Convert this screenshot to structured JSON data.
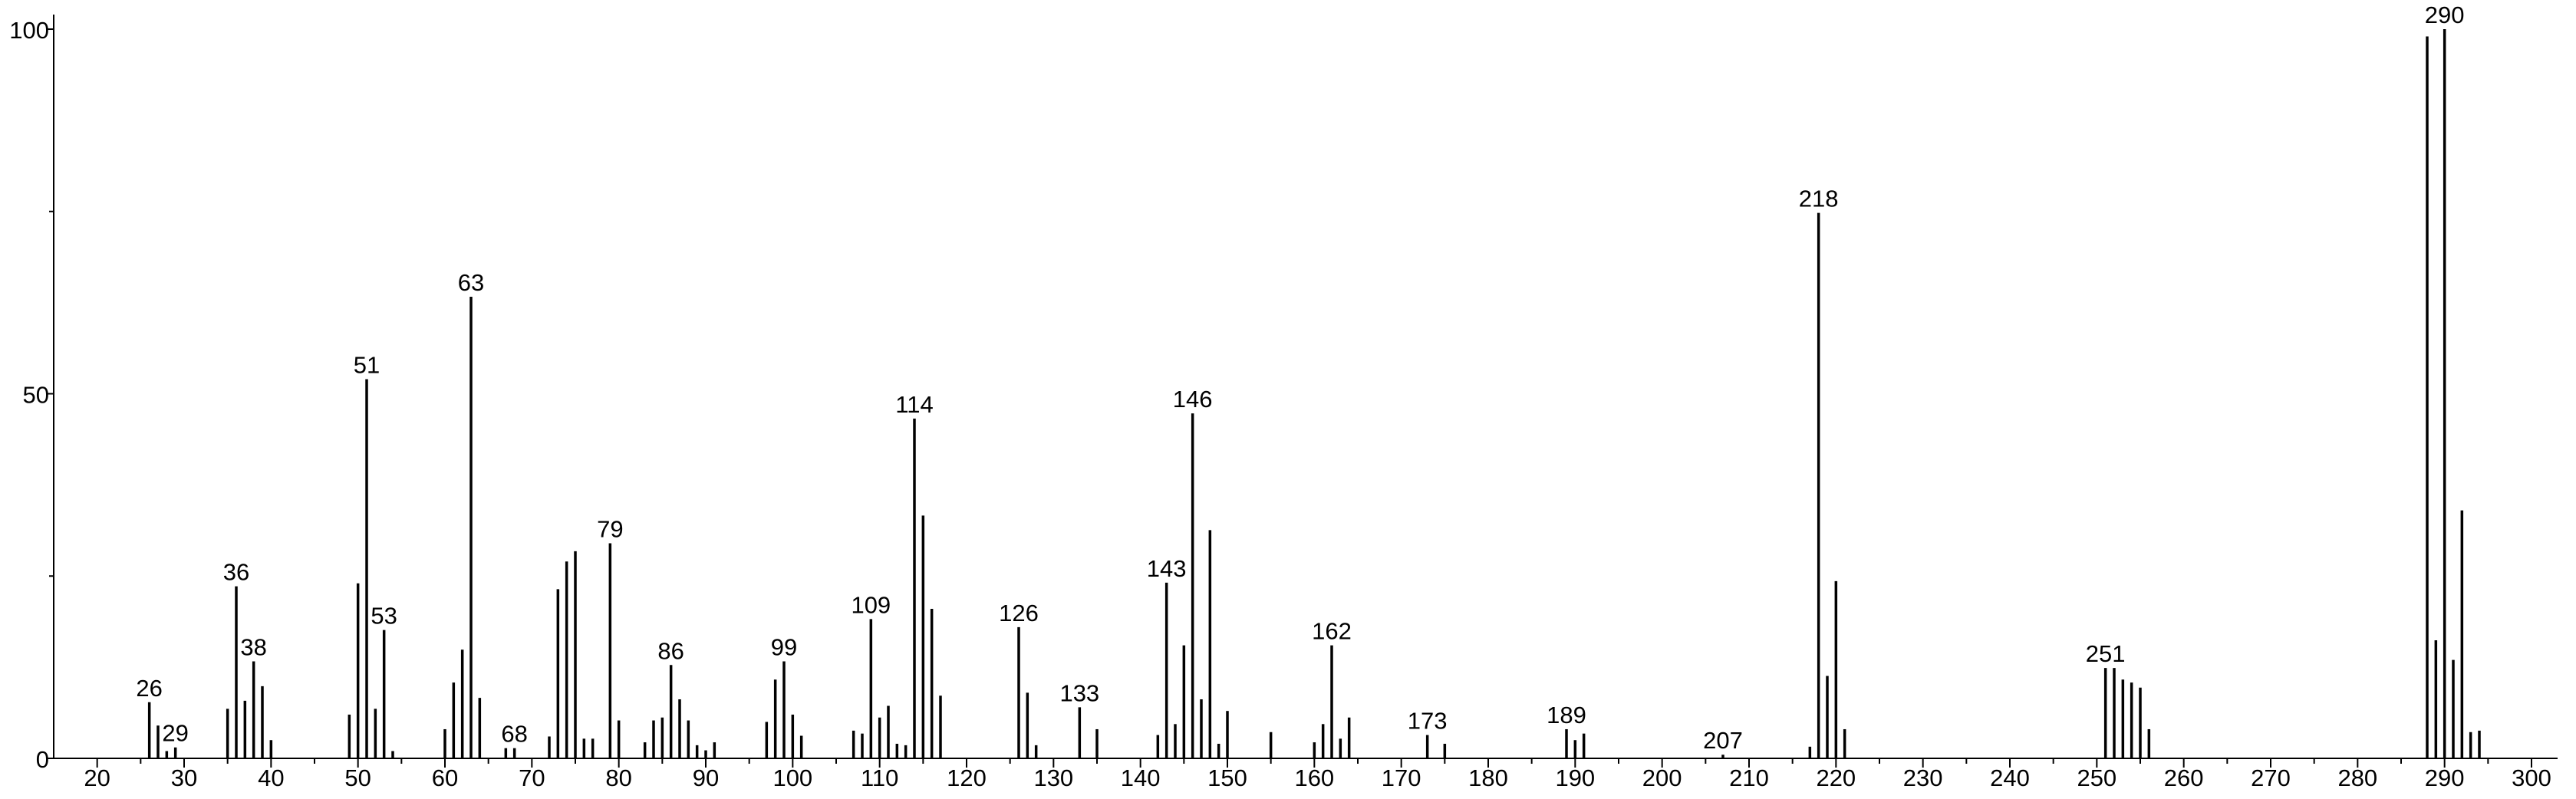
{
  "chart_data": {
    "type": "stem",
    "color": "#000000",
    "x": [
      26,
      27,
      28,
      29,
      35,
      36,
      37,
      38,
      39,
      40,
      49,
      50,
      51,
      52,
      53,
      54,
      60,
      61,
      62,
      63,
      64,
      67,
      68,
      72,
      73,
      74,
      75,
      76,
      77,
      79,
      80,
      83,
      84,
      85,
      86,
      87,
      88,
      89,
      90,
      91,
      97,
      98,
      99,
      100,
      101,
      107,
      108,
      109,
      110,
      111,
      112,
      113,
      114,
      115,
      116,
      117,
      126,
      127,
      128,
      133,
      135,
      142,
      143,
      144,
      145,
      146,
      147,
      148,
      149,
      150,
      155,
      160,
      161,
      162,
      163,
      164,
      173,
      175,
      189,
      190,
      191,
      207,
      217,
      218,
      219,
      220,
      221,
      251,
      252,
      253,
      254,
      255,
      256,
      288,
      289,
      290,
      291,
      292,
      293,
      294
    ],
    "values": [
      7.7,
      4.5,
      1,
      1.5,
      6.8,
      23.6,
      7.9,
      13.3,
      9.9,
      2.5,
      6,
      24,
      52,
      6.8,
      17.6,
      1,
      4,
      10.4,
      14.9,
      63.3,
      8.3,
      1.4,
      1.4,
      3,
      23.2,
      27,
      28.4,
      2.7,
      2.7,
      29.5,
      5.2,
      2.2,
      5.2,
      5.6,
      12.8,
      8.1,
      5.2,
      1.8,
      1.1,
      2.2,
      5,
      10.8,
      13.3,
      6,
      3.1,
      3.8,
      3.4,
      19.1,
      5.6,
      7.2,
      2,
      1.8,
      46.6,
      33.3,
      20.5,
      8.6,
      18,
      9,
      1.8,
      7,
      4,
      3.2,
      24.1,
      4.7,
      15.5,
      47.3,
      8.1,
      31.3,
      2,
      6.5,
      3.6,
      2.2,
      4.7,
      15.5,
      2.7,
      5.6,
      3.2,
      2,
      4,
      2.5,
      3.4,
      0.5,
      1.6,
      74.8,
      11.3,
      24.3,
      4,
      12.4,
      12.4,
      10.8,
      10.4,
      9.7,
      4,
      99,
      16.2,
      100,
      13.5,
      34,
      3.6,
      3.8
    ],
    "peak_labels": [
      26,
      29,
      36,
      38,
      51,
      53,
      63,
      68,
      79,
      86,
      99,
      109,
      114,
      126,
      133,
      143,
      146,
      162,
      173,
      189,
      207,
      218,
      251,
      290
    ],
    "xlim": [
      15,
      303
    ],
    "ylim": [
      0,
      102
    ],
    "xticks": [
      20,
      30,
      40,
      50,
      60,
      70,
      80,
      90,
      100,
      110,
      120,
      130,
      140,
      150,
      160,
      170,
      180,
      190,
      200,
      210,
      220,
      230,
      240,
      250,
      260,
      270,
      280,
      290,
      300
    ],
    "xminorticks": [
      25,
      35,
      45,
      55,
      65,
      75,
      85,
      95,
      105,
      115,
      125,
      135,
      145,
      155,
      165,
      175,
      185,
      195,
      205,
      215,
      225,
      235,
      245,
      255,
      265,
      275,
      285,
      295
    ],
    "yticks": [
      0,
      50,
      100
    ],
    "yminorticks": [
      25,
      75
    ]
  }
}
